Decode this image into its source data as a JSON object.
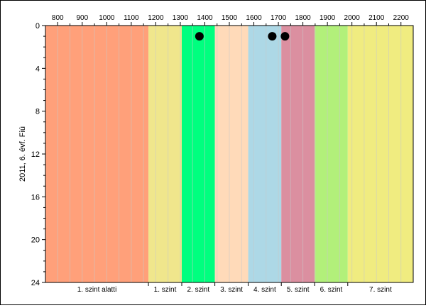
{
  "chart_data": {
    "type": "scatter",
    "ylabel": "2011, 6. évf. Fiú",
    "xlim": [
      750,
      2250
    ],
    "ylim": [
      0,
      24
    ],
    "y_inverted": true,
    "x_ticks": [
      800,
      900,
      1000,
      1100,
      1200,
      1300,
      1400,
      1500,
      1600,
      1700,
      1800,
      1900,
      2000,
      2100,
      2200
    ],
    "y_ticks": [
      0,
      4,
      8,
      12,
      16,
      20,
      24
    ],
    "x_minor_grid_step": 50,
    "grid": true,
    "bands": [
      {
        "label": "1. szint alatti",
        "from": 750,
        "to": 1170,
        "color": "#ffa07a"
      },
      {
        "label": "1. szint",
        "from": 1170,
        "to": 1306,
        "color": "#f0e68c"
      },
      {
        "label": "2. szint",
        "from": 1306,
        "to": 1441,
        "color": "#00ff7f"
      },
      {
        "label": "3. szint",
        "from": 1441,
        "to": 1577,
        "color": "#ffdab9"
      },
      {
        "label": "4. szint",
        "from": 1577,
        "to": 1712,
        "color": "#add8e6"
      },
      {
        "label": "5. szint",
        "from": 1712,
        "to": 1848,
        "color": "#db8fa0"
      },
      {
        "label": "6. szint",
        "from": 1848,
        "to": 1983,
        "color": "#b2f07a"
      },
      {
        "label": "7. szint",
        "from": 1983,
        "to": 2250,
        "color": "#f0ec80"
      }
    ],
    "points": [
      {
        "x": 1378,
        "y": 1
      },
      {
        "x": 1675,
        "y": 1
      },
      {
        "x": 1727,
        "y": 1
      }
    ],
    "point_color": "#000000"
  }
}
